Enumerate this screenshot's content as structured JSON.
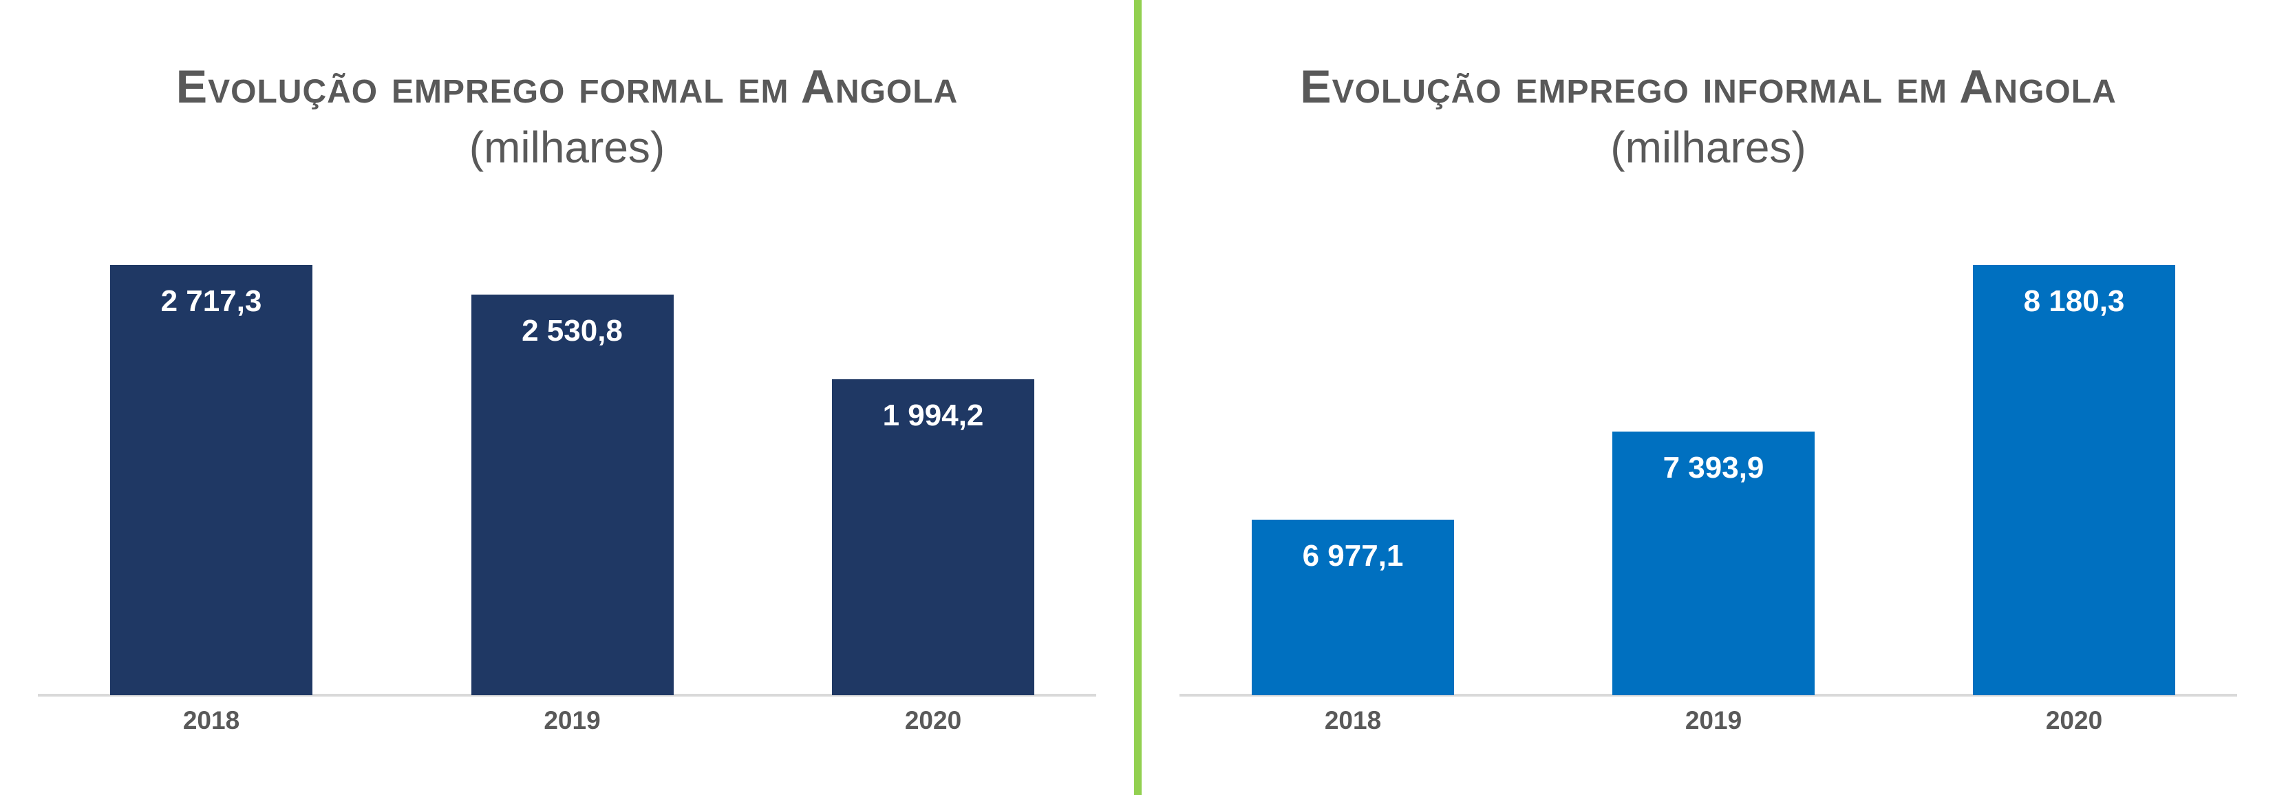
{
  "divider_color": "#92D050",
  "axis_line_color": "#d9d9d9",
  "chart_data": [
    {
      "type": "bar",
      "title": "Evolução emprego formal em Angola",
      "subtitle": "(milhares)",
      "categories": [
        "2018",
        "2019",
        "2020"
      ],
      "values": [
        2717.3,
        2530.8,
        1994.2
      ],
      "value_labels": [
        "2 717,3",
        "2 530,8",
        "1 994,2"
      ],
      "bar_color": "#1F3864",
      "label_color": "#ffffff",
      "title_color": "#595959",
      "ylim": [
        0,
        3000
      ],
      "grid": false,
      "legend": "none",
      "value_label_position": "inside-top"
    },
    {
      "type": "bar",
      "title": "Evolução emprego informal em Angola",
      "subtitle": "(milhares)",
      "categories": [
        "2018",
        "2019",
        "2020"
      ],
      "values": [
        6977.1,
        7393.9,
        8180.3
      ],
      "value_labels": [
        "6 977,1",
        "7 393,9",
        "8 180,3"
      ],
      "bar_color": "#0070C0",
      "label_color": "#ffffff",
      "title_color": "#595959",
      "ylim": [
        6150,
        8390
      ],
      "grid": false,
      "legend": "none",
      "value_label_position": "inside-top"
    }
  ]
}
